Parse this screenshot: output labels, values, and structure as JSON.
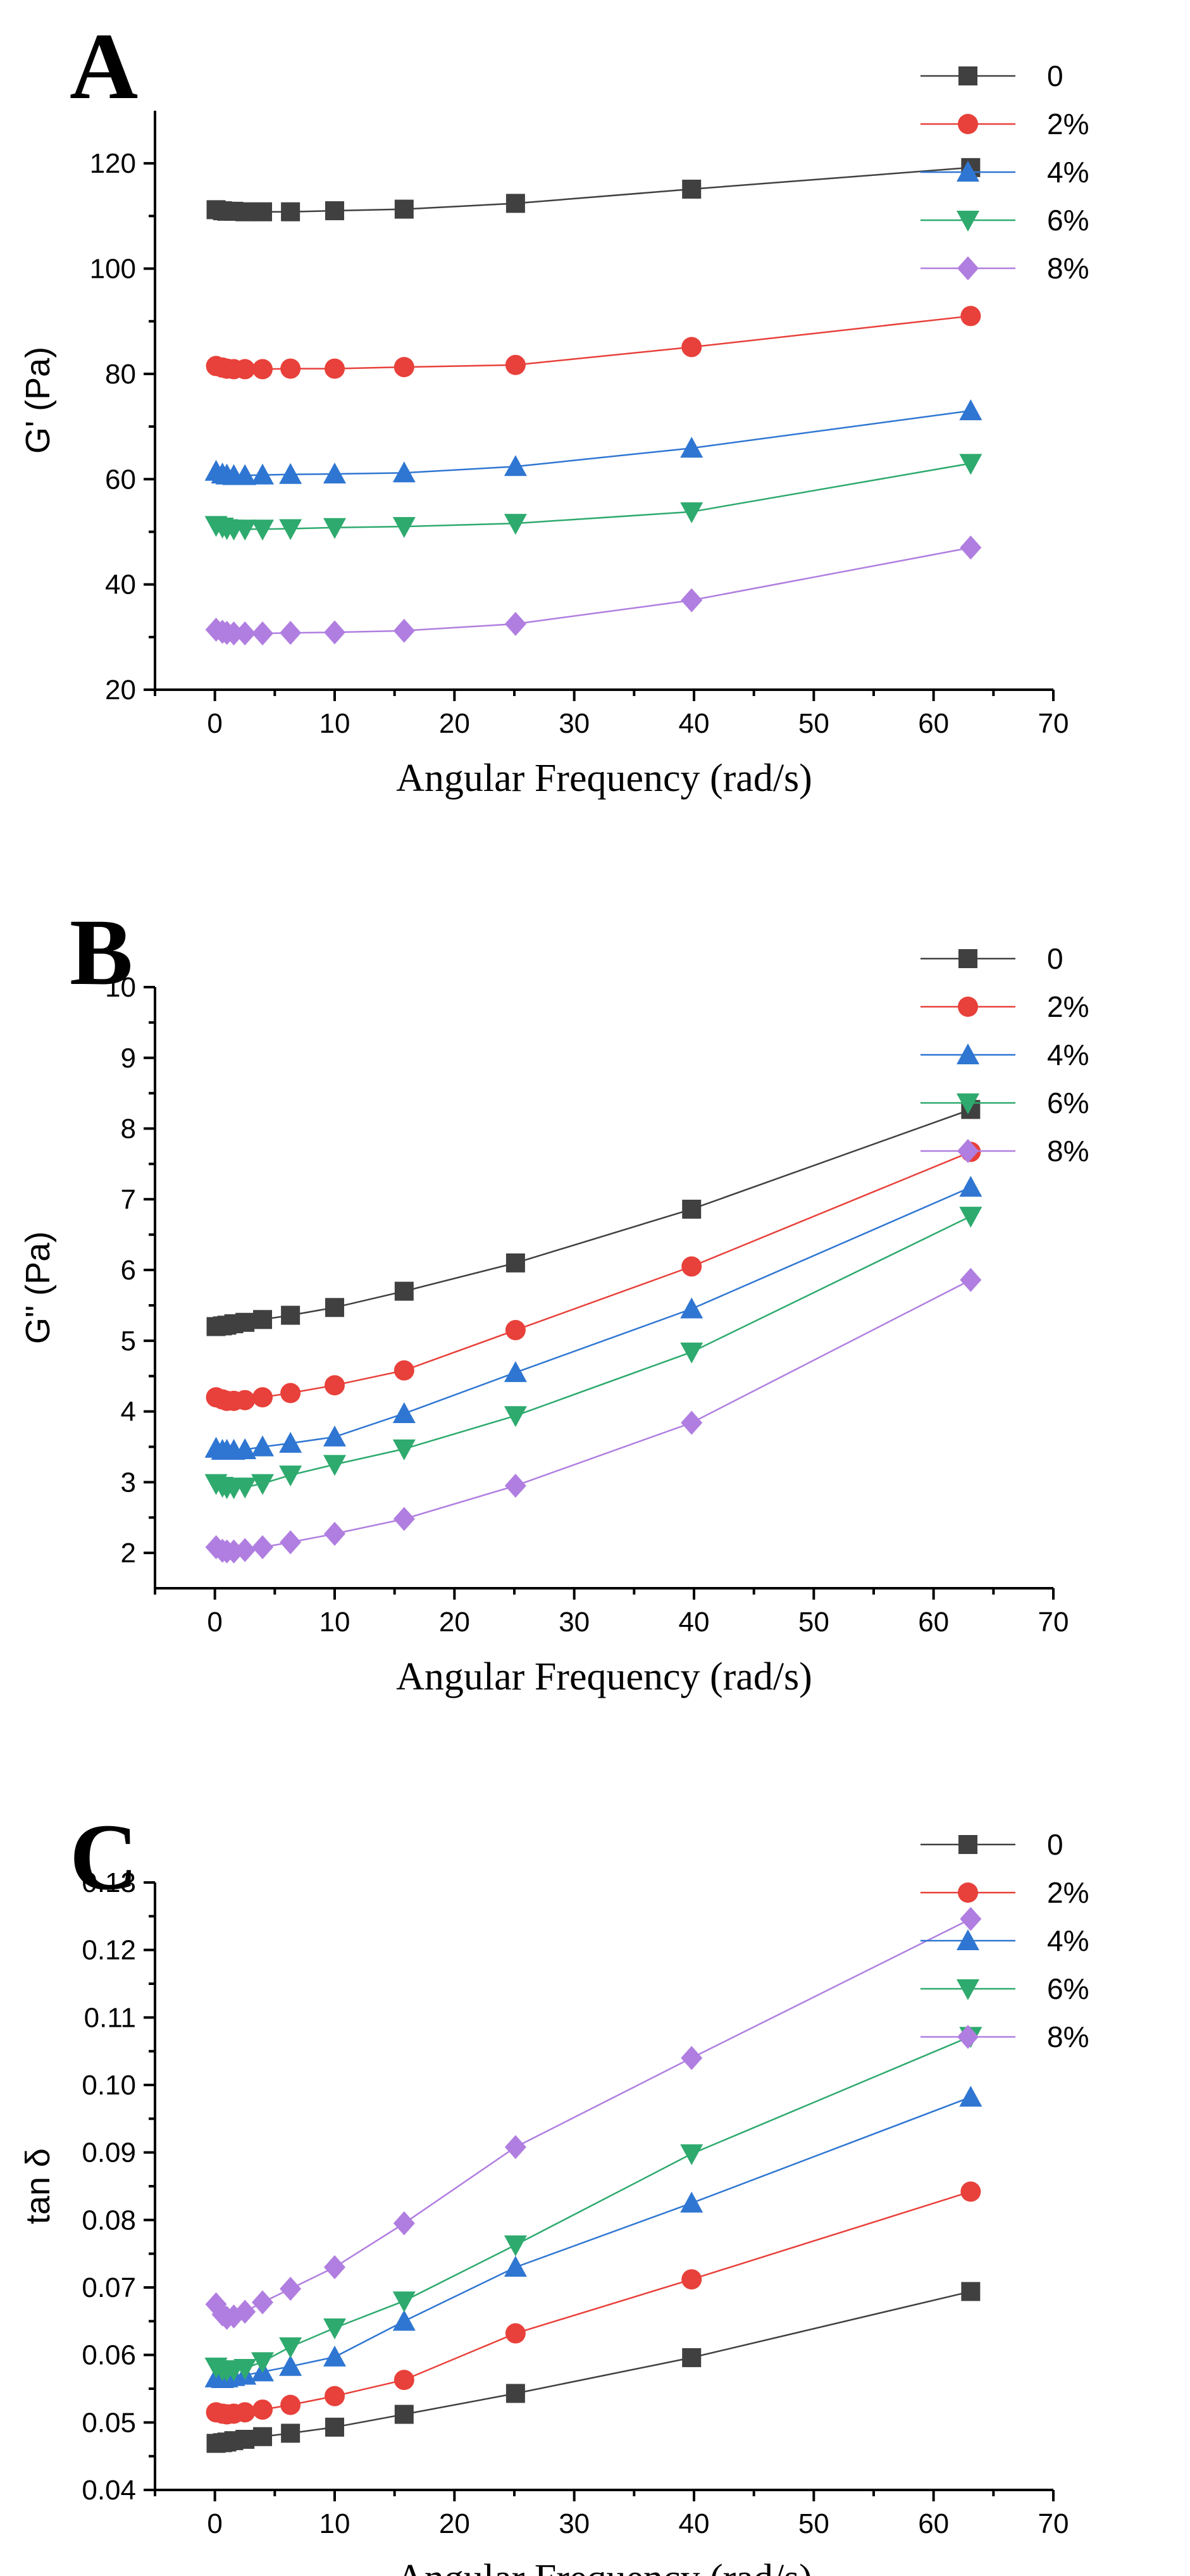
{
  "colors": {
    "0": "#404040",
    "2%": "#e8403a",
    "4%": "#2f76d2",
    "6%": "#2eaa6e",
    "8%": "#b07ee0"
  },
  "markers": {
    "0": "square",
    "2%": "circle",
    "4%": "triangle-up",
    "6%": "triangle-down",
    "8%": "diamond"
  },
  "chart_data": [
    {
      "type": "line",
      "panel_label": "A",
      "xlabel": "Angular Frequency (rad/s)",
      "ylabel": "G' (Pa)",
      "xlim": [
        -5,
        70
      ],
      "ylim": [
        20,
        130
      ],
      "xticks": [
        0,
        10,
        20,
        30,
        40,
        50,
        60,
        70
      ],
      "yticks": [
        20,
        40,
        60,
        80,
        100,
        120
      ],
      "legend_position": "top-right",
      "x": [
        0.1,
        0.63,
        1.0,
        1.58,
        2.51,
        3.98,
        6.31,
        10,
        15.8,
        25.1,
        39.8,
        63.1
      ],
      "series": [
        {
          "name": "0",
          "values": [
            111.2,
            111.0,
            110.9,
            110.9,
            110.8,
            110.8,
            110.8,
            111.0,
            111.3,
            112.4,
            115.1,
            119.2
          ]
        },
        {
          "name": "2%",
          "values": [
            81.5,
            81.2,
            81.0,
            80.9,
            80.9,
            80.9,
            81.0,
            81.0,
            81.3,
            81.7,
            85.1,
            91.0
          ]
        },
        {
          "name": "4%",
          "values": [
            61.5,
            61.0,
            60.8,
            60.7,
            60.7,
            60.8,
            60.9,
            61.0,
            61.2,
            62.4,
            65.9,
            73.0
          ]
        },
        {
          "name": "6%",
          "values": [
            51.2,
            50.9,
            50.6,
            50.5,
            50.5,
            50.5,
            50.6,
            50.8,
            51.0,
            51.6,
            53.8,
            63.0
          ]
        },
        {
          "name": "8%",
          "values": [
            31.4,
            31.0,
            30.8,
            30.7,
            30.7,
            30.7,
            30.8,
            30.9,
            31.2,
            32.5,
            37.0,
            47.0
          ]
        }
      ]
    },
    {
      "type": "line",
      "panel_label": "B",
      "xlabel": "Angular Frequency (rad/s)",
      "ylabel": "G\" (Pa)",
      "xlim": [
        -5,
        70
      ],
      "ylim": [
        1.5,
        10
      ],
      "xticks": [
        0,
        10,
        20,
        30,
        40,
        50,
        60,
        70
      ],
      "yticks": [
        2,
        3,
        4,
        5,
        6,
        7,
        8,
        9,
        10
      ],
      "legend_position": "top-right",
      "x": [
        0.1,
        0.63,
        1.0,
        1.58,
        2.51,
        3.98,
        6.31,
        10,
        15.8,
        25.1,
        39.8,
        63.1
      ],
      "series": [
        {
          "name": "0",
          "values": [
            5.2,
            5.21,
            5.22,
            5.24,
            5.26,
            5.3,
            5.36,
            5.47,
            5.7,
            6.1,
            6.86,
            8.27
          ]
        },
        {
          "name": "2%",
          "values": [
            4.2,
            4.17,
            4.15,
            4.15,
            4.16,
            4.2,
            4.26,
            4.37,
            4.58,
            5.15,
            6.05,
            7.67
          ]
        },
        {
          "name": "4%",
          "values": [
            3.48,
            3.45,
            3.45,
            3.45,
            3.46,
            3.5,
            3.55,
            3.64,
            3.97,
            4.55,
            5.45,
            7.17
          ]
        },
        {
          "name": "6%",
          "values": [
            2.98,
            2.94,
            2.92,
            2.92,
            2.93,
            2.98,
            3.1,
            3.25,
            3.47,
            3.94,
            4.84,
            6.76
          ]
        },
        {
          "name": "8%",
          "values": [
            2.08,
            2.03,
            2.02,
            2.02,
            2.04,
            2.08,
            2.15,
            2.27,
            2.48,
            2.95,
            3.84,
            5.86
          ]
        }
      ]
    },
    {
      "type": "line",
      "panel_label": "C",
      "xlabel": "Angular Frequency (rad/s)",
      "ylabel": "tan δ",
      "xlim": [
        -5,
        70
      ],
      "ylim": [
        0.04,
        0.13
      ],
      "xticks": [
        0,
        10,
        20,
        30,
        40,
        50,
        60,
        70
      ],
      "yticks": [
        0.04,
        0.05,
        0.06,
        0.07,
        0.08,
        0.09,
        0.1,
        0.11,
        0.12,
        0.13
      ],
      "ytick_labels": [
        "0.04",
        "0.05",
        "0.06",
        "0.07",
        "0.08",
        "0.09",
        "0.10",
        "0.11",
        "0.12",
        "0.13"
      ],
      "legend_position": "top-right",
      "x": [
        0.1,
        0.63,
        1.0,
        1.58,
        2.51,
        3.98,
        6.31,
        10,
        15.8,
        25.1,
        39.8,
        63.1
      ],
      "series": [
        {
          "name": "0",
          "values": [
            0.0469,
            0.047,
            0.0471,
            0.0473,
            0.0475,
            0.0479,
            0.0484,
            0.0493,
            0.0512,
            0.0543,
            0.0596,
            0.0694
          ]
        },
        {
          "name": "2%",
          "values": [
            0.0515,
            0.0513,
            0.0512,
            0.0513,
            0.0515,
            0.0519,
            0.0526,
            0.0539,
            0.0563,
            0.0632,
            0.0712,
            0.0842
          ]
        },
        {
          "name": "4%",
          "values": [
            0.0566,
            0.0565,
            0.0566,
            0.0568,
            0.057,
            0.0575,
            0.0583,
            0.0597,
            0.065,
            0.073,
            0.0825,
            0.0982
          ]
        },
        {
          "name": "6%",
          "values": [
            0.0582,
            0.0578,
            0.0577,
            0.0578,
            0.058,
            0.059,
            0.0612,
            0.064,
            0.068,
            0.0763,
            0.0898,
            0.1072
          ]
        },
        {
          "name": "8%",
          "values": [
            0.0675,
            0.066,
            0.0655,
            0.0657,
            0.0664,
            0.0678,
            0.0698,
            0.073,
            0.0795,
            0.0908,
            0.104,
            0.1246
          ]
        }
      ]
    }
  ]
}
